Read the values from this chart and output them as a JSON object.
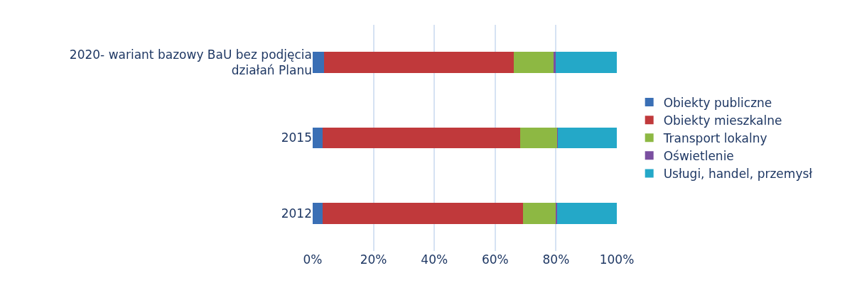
{
  "chart_data": {
    "type": "bar",
    "orientation": "horizontal",
    "stacked": true,
    "categories": [
      "2020- wariant bazowy BaU bez podjęcia działań Planu",
      "2015",
      "2012"
    ],
    "series": [
      {
        "name": "Obiekty publiczne",
        "color": "#3a6fb5",
        "values": [
          3.7,
          3.3,
          3.3
        ]
      },
      {
        "name": "Obiekty mieszkalne",
        "color": "#c0393b",
        "values": [
          62.4,
          64.9,
          65.9
        ]
      },
      {
        "name": "Transport lokalny",
        "color": "#8db843",
        "values": [
          13.3,
          12.2,
          10.9
        ]
      },
      {
        "name": "Oświetlenie",
        "color": "#7a4fa0",
        "values": [
          0.4,
          0.2,
          0.2
        ]
      },
      {
        "name": "Usługi, handel, przemysł",
        "color": "#24a8c8",
        "values": [
          20.2,
          19.4,
          19.7
        ]
      }
    ],
    "xlim": [
      0,
      100
    ],
    "xticks": [
      {
        "value": 0,
        "label": "0%"
      },
      {
        "value": 20,
        "label": "20%"
      },
      {
        "value": 40,
        "label": "40%"
      },
      {
        "value": 60,
        "label": "60%"
      },
      {
        "value": 80,
        "label": "80%"
      },
      {
        "value": 100,
        "label": "100%"
      }
    ],
    "grid": "x",
    "legend": "right"
  }
}
